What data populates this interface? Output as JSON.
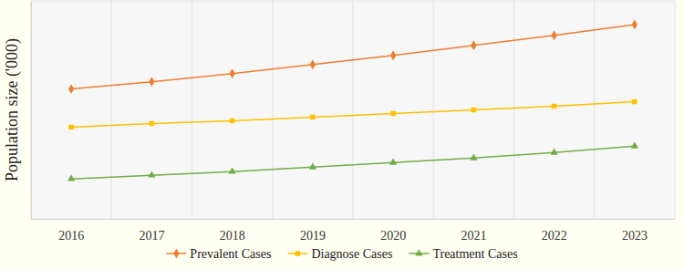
{
  "chart_data": {
    "type": "line",
    "y_label": "Population size ('000)",
    "categories": [
      "2016",
      "2017",
      "2018",
      "2019",
      "2020",
      "2021",
      "2022",
      "2023"
    ],
    "series": [
      {
        "name": "Prevalent Cases",
        "color": "#ed7d31",
        "marker": "diamond",
        "values": [
          143,
          151,
          160,
          170,
          180,
          191,
          202,
          214
        ]
      },
      {
        "name": "Diagnose Cases",
        "color": "#ffc000",
        "marker": "square",
        "values": [
          101,
          105,
          108,
          112,
          116,
          120,
          124,
          129
        ]
      },
      {
        "name": "Treatment Cases",
        "color": "#70ad47",
        "marker": "triangle",
        "values": [
          44,
          48,
          52,
          57,
          62,
          67,
          73,
          80
        ]
      }
    ],
    "ylim": [
      0,
      240
    ],
    "grid": true,
    "legend": "bottom",
    "tick_labels": "x"
  }
}
